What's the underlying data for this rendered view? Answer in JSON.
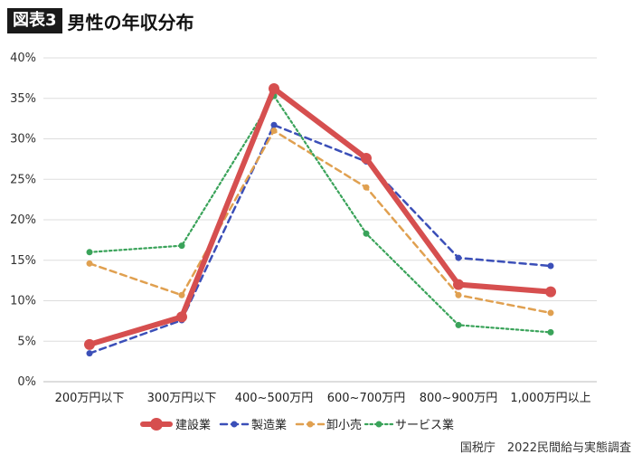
{
  "header": {
    "badge": "図表3",
    "title": "男性の年収分布"
  },
  "source": "国税庁　2022民間給与実態調査",
  "chart_data": {
    "type": "line",
    "categories": [
      "200万円以下",
      "300万円以下",
      "400~500万円",
      "600~700万円",
      "800~900万円",
      "1,000万円以上"
    ],
    "ylim": [
      0,
      40
    ],
    "yticks": [
      0,
      5,
      10,
      15,
      20,
      25,
      30,
      35,
      40
    ],
    "ytick_labels": [
      "0%",
      "5%",
      "10%",
      "15%",
      "20%",
      "25%",
      "30%",
      "35%",
      "40%"
    ],
    "grid": true,
    "legend_position": "bottom",
    "series": [
      {
        "name": "建設業",
        "values": [
          4.6,
          8.0,
          36.2,
          27.6,
          12.0,
          11.1
        ],
        "color": "#d64f4f",
        "style": "solid-thick"
      },
      {
        "name": "製造業",
        "values": [
          3.5,
          7.6,
          31.7,
          27.2,
          15.3,
          14.3
        ],
        "color": "#3b4fb8",
        "style": "dashed"
      },
      {
        "name": "卸小売",
        "values": [
          14.6,
          10.7,
          31.0,
          24.0,
          10.7,
          8.5
        ],
        "color": "#e0a050",
        "style": "dashed"
      },
      {
        "name": "サービス業",
        "values": [
          16.0,
          16.8,
          35.3,
          18.3,
          7.0,
          6.1
        ],
        "color": "#3aa35a",
        "style": "dotted"
      }
    ]
  }
}
